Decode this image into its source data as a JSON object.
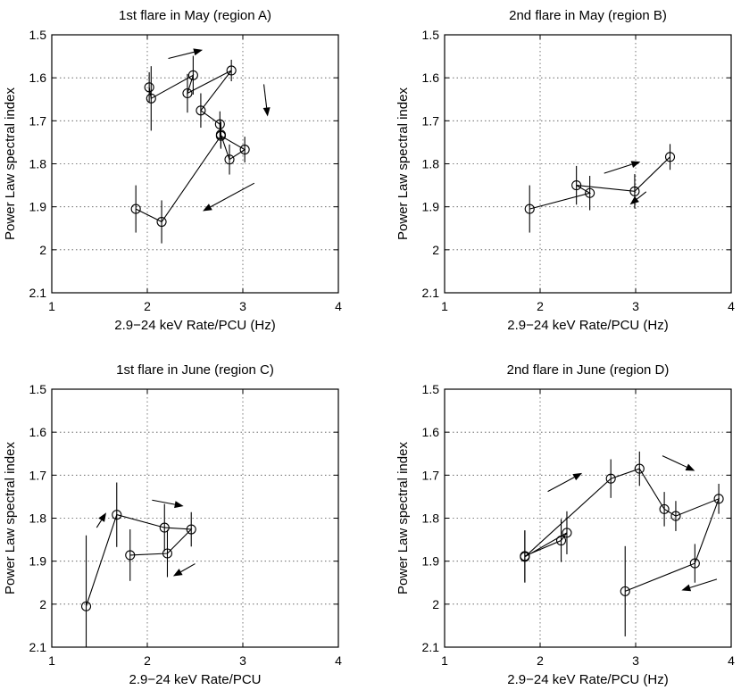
{
  "chart_data": [
    {
      "type": "scatter",
      "title": "1st flare in May (region A)",
      "xlabel": "2.9−24 keV Rate/PCU (Hz)",
      "ylabel": "Power Law spectral index",
      "xlim": [
        1,
        4
      ],
      "ylim": [
        1.5,
        2.1
      ],
      "y_reversed": true,
      "xticks": [
        "1",
        "2",
        "3",
        "4"
      ],
      "yticks": [
        "1.5",
        "1.6",
        "1.7",
        "1.8",
        "1.9",
        "2",
        "2.1"
      ],
      "grid": true,
      "series": [
        {
          "name": "region A",
          "connected": true,
          "points": [
            {
              "x": 2.02,
              "y": 1.622,
              "err": 0.035
            },
            {
              "x": 2.04,
              "y": 1.648,
              "err": 0.075
            },
            {
              "x": 2.48,
              "y": 1.594,
              "err": 0.045
            },
            {
              "x": 2.42,
              "y": 1.636,
              "err": 0.045
            },
            {
              "x": 2.88,
              "y": 1.583,
              "err": 0.025
            },
            {
              "x": 2.56,
              "y": 1.676,
              "err": 0.04
            },
            {
              "x": 2.76,
              "y": 1.708,
              "err": 0.03
            },
            {
              "x": 2.77,
              "y": 1.732,
              "err": 0.03
            },
            {
              "x": 2.86,
              "y": 1.79,
              "err": 0.035
            },
            {
              "x": 3.02,
              "y": 1.767,
              "err": 0.03
            },
            {
              "x": 2.77,
              "y": 1.735,
              "err": 0.03
            },
            {
              "x": 2.15,
              "y": 1.935,
              "err": 0.05
            },
            {
              "x": 1.88,
              "y": 1.905,
              "err": 0.055
            }
          ]
        }
      ],
      "arrows": [
        {
          "from": [
            2.22,
            1.555
          ],
          "to": [
            2.58,
            1.535
          ]
        },
        {
          "from": [
            3.22,
            1.615
          ],
          "to": [
            3.26,
            1.69
          ]
        },
        {
          "from": [
            3.12,
            1.845
          ],
          "to": [
            2.58,
            1.91
          ]
        }
      ]
    },
    {
      "type": "scatter",
      "title": "2nd flare in May (region B)",
      "xlabel": "2.9−24 keV Rate/PCU (Hz)",
      "ylabel": "Power Law spectral index",
      "xlim": [
        1,
        4
      ],
      "ylim": [
        1.5,
        2.1
      ],
      "y_reversed": true,
      "xticks": [
        "1",
        "2",
        "3",
        "4"
      ],
      "yticks": [
        "1.5",
        "1.6",
        "1.7",
        "1.8",
        "1.9",
        "2",
        "2.1"
      ],
      "grid": true,
      "series": [
        {
          "name": "region B",
          "connected": true,
          "points": [
            {
              "x": 1.89,
              "y": 1.905,
              "err": 0.055
            },
            {
              "x": 2.52,
              "y": 1.868,
              "err": 0.04
            },
            {
              "x": 2.38,
              "y": 1.85,
              "err": 0.045
            },
            {
              "x": 2.99,
              "y": 1.864,
              "err": 0.04
            },
            {
              "x": 3.36,
              "y": 1.784,
              "err": 0.03
            }
          ]
        }
      ],
      "arrows": [
        {
          "from": [
            2.67,
            1.822
          ],
          "to": [
            3.05,
            1.795
          ]
        },
        {
          "from": [
            3.11,
            1.865
          ],
          "to": [
            2.94,
            1.895
          ]
        }
      ]
    },
    {
      "type": "scatter",
      "title": "1st flare in June (region C)",
      "xlabel": "2.9−24 keV Rate/PCU",
      "ylabel": "Power Law spectral index",
      "xlim": [
        1,
        4
      ],
      "ylim": [
        1.5,
        2.1
      ],
      "y_reversed": true,
      "xticks": [
        "1",
        "2",
        "3",
        "4"
      ],
      "yticks": [
        "1.5",
        "1.6",
        "1.7",
        "1.8",
        "1.9",
        "2",
        "2.1"
      ],
      "grid": true,
      "series": [
        {
          "name": "region C",
          "connected": true,
          "points": [
            {
              "x": 1.36,
              "y": 2.005,
              "err": 0.165
            },
            {
              "x": 1.68,
              "y": 1.792,
              "err": 0.075
            },
            {
              "x": 2.18,
              "y": 1.822,
              "err": 0.055
            },
            {
              "x": 2.46,
              "y": 1.826,
              "err": 0.04
            },
            {
              "x": 2.21,
              "y": 1.882,
              "err": 0.055
            },
            {
              "x": 1.82,
              "y": 1.886,
              "err": 0.06
            }
          ]
        }
      ],
      "arrows": [
        {
          "from": [
            1.47,
            1.822
          ],
          "to": [
            1.57,
            1.787
          ]
        },
        {
          "from": [
            2.05,
            1.758
          ],
          "to": [
            2.38,
            1.772
          ]
        },
        {
          "from": [
            2.5,
            1.906
          ],
          "to": [
            2.27,
            1.935
          ]
        }
      ]
    },
    {
      "type": "scatter",
      "title": "2nd flare in June (region D)",
      "xlabel": "2.9−24 keV Rate/PCU (Hz)",
      "ylabel": "Power Law spectral index",
      "xlim": [
        1,
        4
      ],
      "ylim": [
        1.5,
        2.1
      ],
      "y_reversed": true,
      "xticks": [
        "1",
        "2",
        "3",
        "4"
      ],
      "yticks": [
        "1.5",
        "1.6",
        "1.7",
        "1.8",
        "1.9",
        "2",
        "2.1"
      ],
      "grid": true,
      "series": [
        {
          "name": "region D",
          "connected": true,
          "points": [
            {
              "x": 1.84,
              "y": 1.888,
              "err": 0.06
            },
            {
              "x": 2.22,
              "y": 1.852,
              "err": 0.05
            },
            {
              "x": 2.28,
              "y": 1.834,
              "err": 0.05
            },
            {
              "x": 1.84,
              "y": 1.89,
              "err": 0.06
            },
            {
              "x": 2.74,
              "y": 1.708,
              "err": 0.045
            },
            {
              "x": 3.04,
              "y": 1.685,
              "err": 0.04
            },
            {
              "x": 3.3,
              "y": 1.779,
              "err": 0.04
            },
            {
              "x": 3.42,
              "y": 1.795,
              "err": 0.035
            },
            {
              "x": 3.87,
              "y": 1.755,
              "err": 0.035
            },
            {
              "x": 3.62,
              "y": 1.905,
              "err": 0.045
            },
            {
              "x": 2.89,
              "y": 1.97,
              "err": 0.105
            }
          ]
        }
      ],
      "arrows": [
        {
          "from": [
            2.08,
            1.738
          ],
          "to": [
            2.44,
            1.695
          ]
        },
        {
          "from": [
            3.28,
            1.655
          ],
          "to": [
            3.62,
            1.69
          ]
        },
        {
          "from": [
            3.85,
            1.942
          ],
          "to": [
            3.48,
            1.968
          ]
        }
      ]
    }
  ]
}
